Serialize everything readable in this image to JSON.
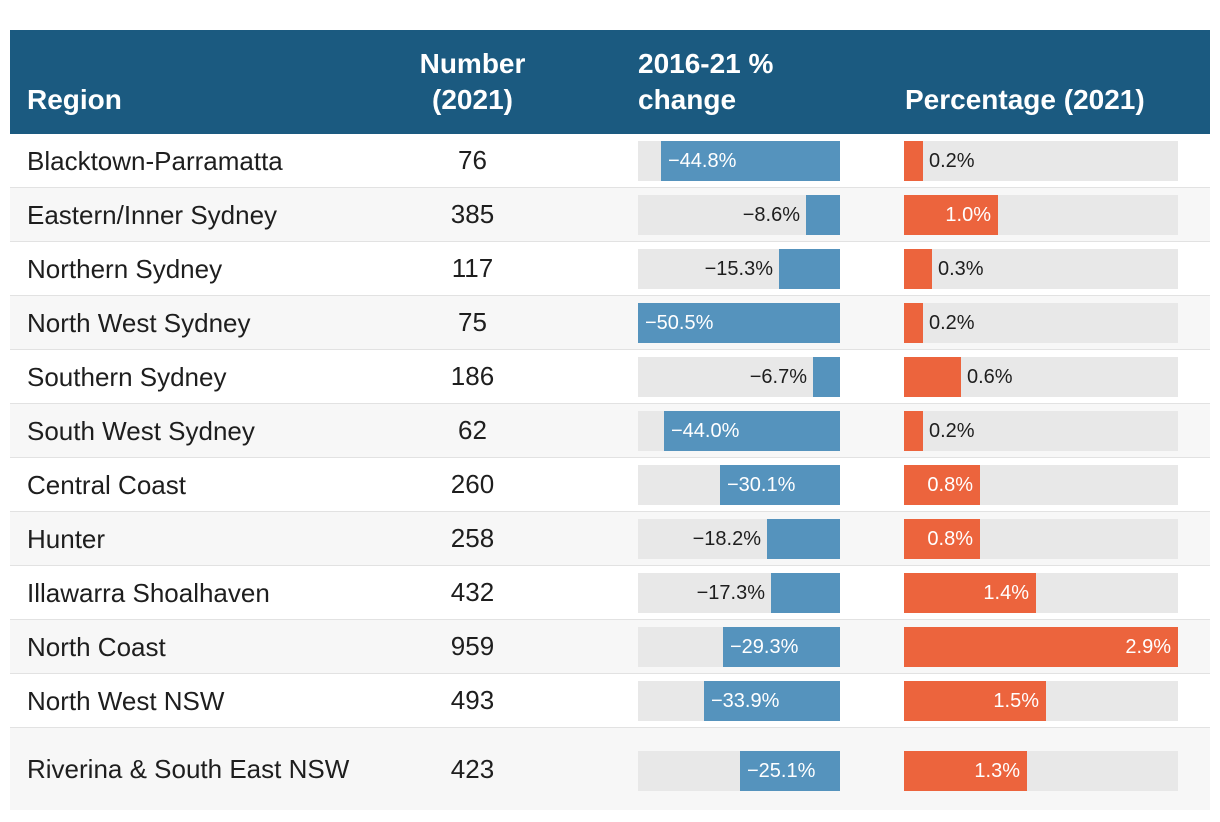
{
  "colors": {
    "header_bg": "#1b5a80",
    "change_bar": "#5593bd",
    "pct_bar": "#ec643d",
    "track": "#e8e8e8"
  },
  "headers": {
    "region": "Region",
    "number": "Number\n(2021)",
    "change": "2016-21 %\nchange",
    "percentage": "Percentage (2021)"
  },
  "chart_data": {
    "type": "table",
    "columns": [
      "Region",
      "Number (2021)",
      "2016-21 % change",
      "Percentage (2021)"
    ],
    "change_scale_max": 50.5,
    "pct_scale_max": 2.9,
    "rows": [
      {
        "region": "Blacktown-Parramatta",
        "number": "76",
        "change": -44.8,
        "change_label": "−44.8%",
        "pct": 0.2,
        "pct_label": "0.2%"
      },
      {
        "region": "Eastern/Inner Sydney",
        "number": "385",
        "change": -8.6,
        "change_label": "−8.6%",
        "pct": 1.0,
        "pct_label": "1.0%"
      },
      {
        "region": "Northern Sydney",
        "number": "117",
        "change": -15.3,
        "change_label": "−15.3%",
        "pct": 0.3,
        "pct_label": "0.3%"
      },
      {
        "region": "North West Sydney",
        "number": "75",
        "change": -50.5,
        "change_label": "−50.5%",
        "pct": 0.2,
        "pct_label": "0.2%"
      },
      {
        "region": "Southern Sydney",
        "number": "186",
        "change": -6.7,
        "change_label": "−6.7%",
        "pct": 0.6,
        "pct_label": "0.6%"
      },
      {
        "region": "South West Sydney",
        "number": "62",
        "change": -44.0,
        "change_label": "−44.0%",
        "pct": 0.2,
        "pct_label": "0.2%"
      },
      {
        "region": "Central Coast",
        "number": "260",
        "change": -30.1,
        "change_label": "−30.1%",
        "pct": 0.8,
        "pct_label": "0.8%"
      },
      {
        "region": "Hunter",
        "number": "258",
        "change": -18.2,
        "change_label": "−18.2%",
        "pct": 0.8,
        "pct_label": "0.8%"
      },
      {
        "region": "Illawarra Shoalhaven",
        "number": "432",
        "change": -17.3,
        "change_label": "−17.3%",
        "pct": 1.4,
        "pct_label": "1.4%"
      },
      {
        "region": "North Coast",
        "number": "959",
        "change": -29.3,
        "change_label": "−29.3%",
        "pct": 2.9,
        "pct_label": "2.9%"
      },
      {
        "region": "North West NSW",
        "number": "493",
        "change": -33.9,
        "change_label": "−33.9%",
        "pct": 1.5,
        "pct_label": "1.5%"
      },
      {
        "region": "Riverina & South East NSW",
        "number": "423",
        "change": -25.1,
        "change_label": "−25.1%",
        "pct": 1.3,
        "pct_label": "1.3%"
      }
    ]
  }
}
